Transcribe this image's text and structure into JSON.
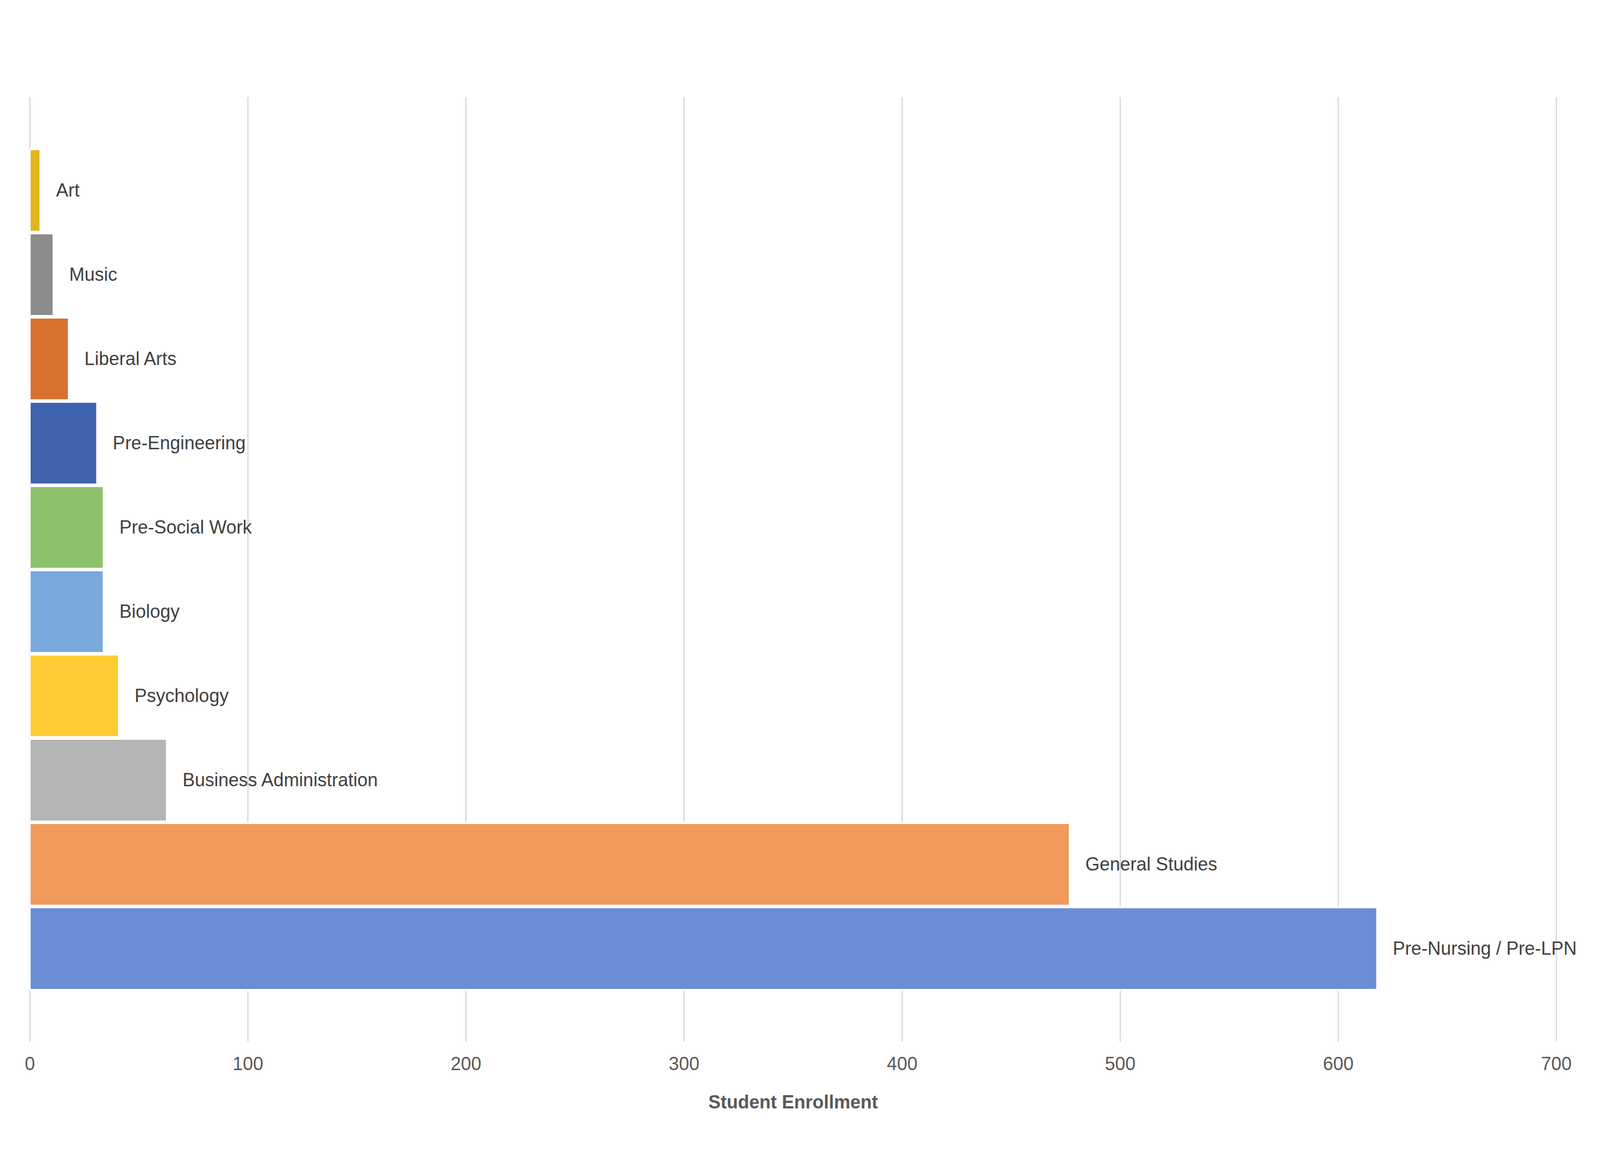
{
  "chart_data": {
    "type": "bar",
    "orientation": "horizontal",
    "x_label": "Student Enrollment",
    "categories": [
      "Art",
      "Music",
      "Liberal Arts",
      "Pre-Engineering",
      "Pre-Social Work",
      "Biology",
      "Psychology",
      "Business Administration",
      "General Studies",
      "Pre-Nursing / Pre-LPN"
    ],
    "values": [
      5,
      11,
      18,
      31,
      34,
      34,
      41,
      63,
      477,
      618
    ],
    "colors": [
      "#e2b41f",
      "#8c8c8c",
      "#d9712e",
      "#3f63ad",
      "#8dc26a",
      "#7aa9dc",
      "#ffcc33",
      "#b5b5b5",
      "#f2995c",
      "#6a8ed6"
    ],
    "xlim": [
      0,
      700
    ],
    "xticks": [
      0,
      100,
      200,
      300,
      400,
      500,
      600,
      700
    ],
    "grid": true,
    "tick_labels": "x"
  }
}
